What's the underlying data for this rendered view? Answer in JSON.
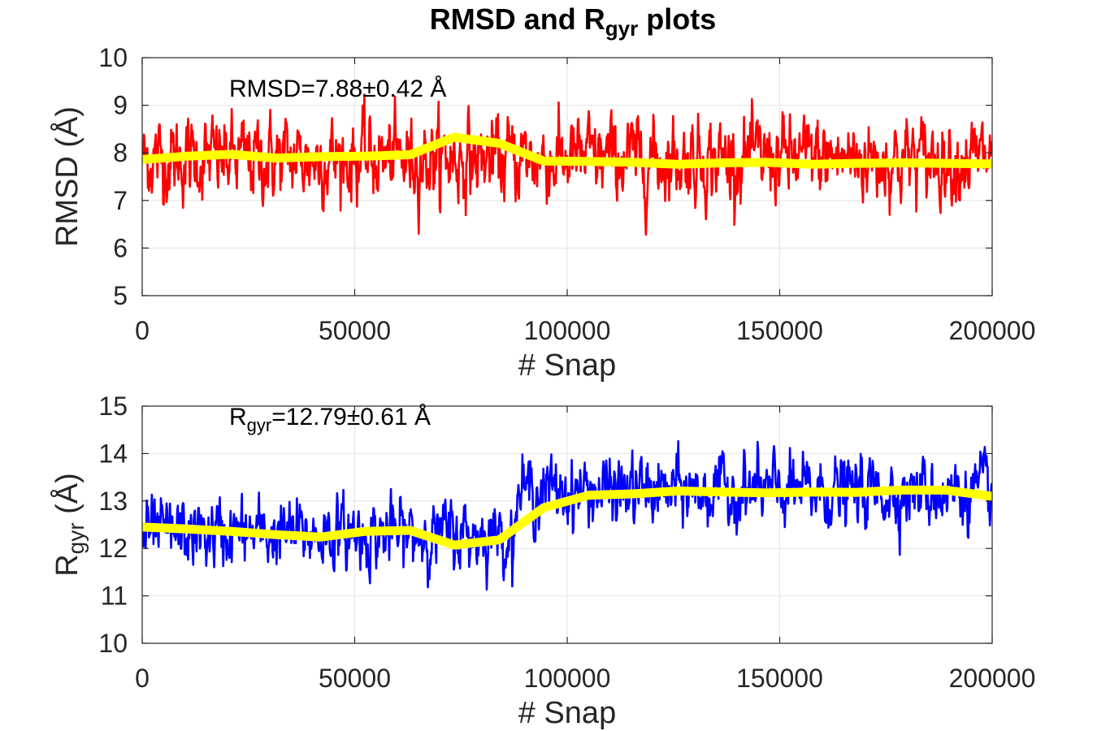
{
  "figure": {
    "title_main": "RMSD and R",
    "title_sub": "gyr",
    "title_tail": " plots"
  },
  "chart_data": [
    {
      "type": "line",
      "ylabel": "RMSD (Å)",
      "xlabel": "# Snap",
      "xlim": [
        0,
        200000
      ],
      "ylim": [
        5,
        10
      ],
      "xticks": [
        0,
        50000,
        100000,
        150000,
        200000
      ],
      "yticks": [
        5,
        6,
        7,
        8,
        9,
        10
      ],
      "grid": true,
      "annotation": {
        "main": "RMSD=7.88±0.42 Å"
      },
      "series": [
        {
          "color": "#ff0000",
          "kind": "raw_fluctuating_trace",
          "noise_sd": 0.42,
          "segments": [
            {
              "x": [
                0,
                200000
              ],
              "mean": 7.88
            }
          ]
        },
        {
          "color": "#ffff00",
          "kind": "smoothed_trace",
          "x": [
            0,
            10500,
            21000,
            31500,
            42000,
            52500,
            63000,
            73500,
            84000,
            94500,
            105000,
            115500,
            126000,
            136500,
            147000,
            157500,
            168000,
            178500,
            189000,
            200000
          ],
          "y": [
            7.86,
            7.93,
            7.97,
            7.89,
            7.92,
            7.93,
            7.96,
            8.33,
            8.2,
            7.83,
            7.82,
            7.8,
            7.76,
            7.79,
            7.8,
            7.76,
            7.78,
            7.79,
            7.78,
            7.77
          ]
        }
      ]
    },
    {
      "type": "line",
      "ylabel": "R",
      "ylabel_sub": "gyr",
      "ylabel_tail": " (Å)",
      "xlabel": "# Snap",
      "xlim": [
        0,
        200000
      ],
      "ylim": [
        10,
        15
      ],
      "xticks": [
        0,
        50000,
        100000,
        150000,
        200000
      ],
      "yticks": [
        10,
        11,
        12,
        13,
        14,
        15
      ],
      "grid": true,
      "annotation": {
        "main": "R",
        "sub": "gyr",
        "tail": "=12.79±0.61 Å"
      },
      "series": [
        {
          "color": "#0000ff",
          "kind": "raw_fluctuating_trace",
          "noise_sd": 0.35,
          "segments": [
            {
              "x": [
                0,
                88000
              ],
              "mean": 12.3
            },
            {
              "x": [
                88000,
                200000
              ],
              "mean": 13.2
            }
          ]
        },
        {
          "color": "#ffff00",
          "kind": "smoothed_trace",
          "x": [
            0,
            10500,
            21000,
            31500,
            42000,
            52500,
            63000,
            73500,
            84000,
            94500,
            105000,
            115500,
            126000,
            136500,
            147000,
            157500,
            168000,
            178500,
            189000,
            200000
          ],
          "y": [
            12.45,
            12.41,
            12.36,
            12.29,
            12.24,
            12.36,
            12.38,
            12.07,
            12.18,
            12.86,
            13.12,
            13.15,
            13.21,
            13.19,
            13.17,
            13.19,
            13.18,
            13.23,
            13.23,
            13.1
          ]
        }
      ]
    }
  ]
}
